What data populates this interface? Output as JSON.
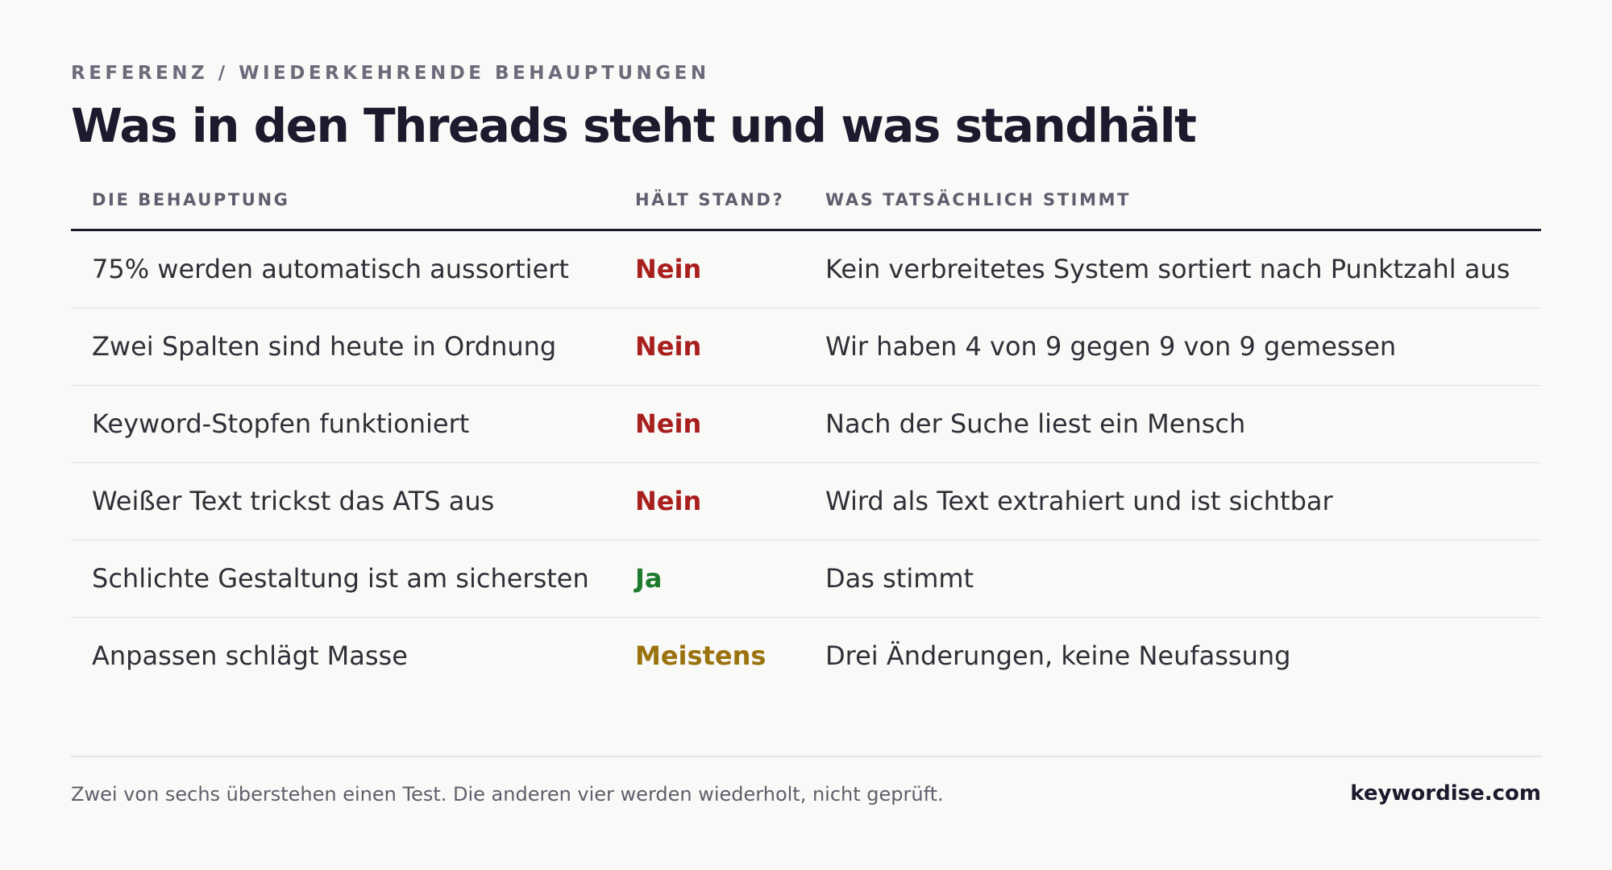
{
  "header": {
    "eyebrow": "REFERENZ / WIEDERKEHRENDE BEHAUPTUNGEN",
    "title": "Was in den Threads steht und was standhält"
  },
  "table": {
    "columns": [
      "DIE BEHAUPTUNG",
      "HÄLT STAND?",
      "WAS TATSÄCHLICH STIMMT"
    ],
    "rows": [
      {
        "claim": "75% werden automatisch aussortiert",
        "verdict": "Nein",
        "truth": "Kein verbreitetes System sortiert nach Punktzahl aus"
      },
      {
        "claim": "Zwei Spalten sind heute in Ordnung",
        "verdict": "Nein",
        "truth": "Wir haben 4 von 9 gegen 9 von 9 gemessen"
      },
      {
        "claim": "Keyword-Stopfen funktioniert",
        "verdict": "Nein",
        "truth": "Nach der Suche liest ein Mensch"
      },
      {
        "claim": "Weißer Text trickst das ATS aus",
        "verdict": "Nein",
        "truth": "Wird als Text extrahiert und ist sichtbar"
      },
      {
        "claim": "Schlichte Gestaltung ist am sichersten",
        "verdict": "Ja",
        "truth": "Das stimmt"
      },
      {
        "claim": "Anpassen schlägt Masse",
        "verdict": "Meistens",
        "truth": "Drei Änderungen, keine Neufassung"
      }
    ]
  },
  "colors": {
    "nein": "#a8201e",
    "ja": "#1e7a2e",
    "meistens": "#9a720e"
  },
  "footer": {
    "note": "Zwei von sechs überstehen einen Test. Die anderen vier werden wiederholt, nicht geprüft.",
    "brand": "keywordise.com"
  }
}
